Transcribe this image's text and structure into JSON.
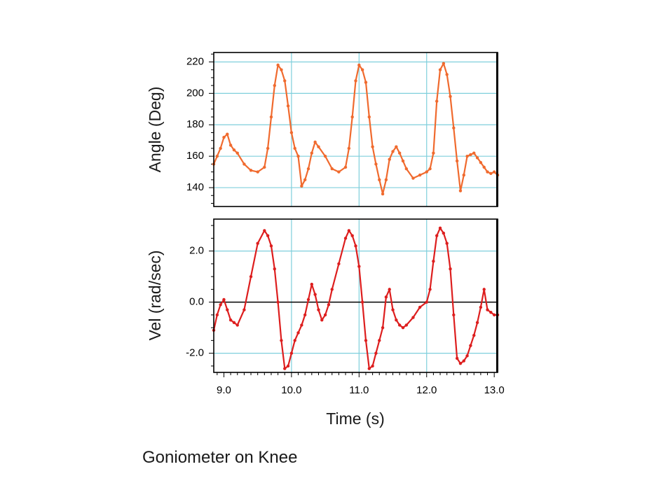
{
  "caption": "Goniometer on Knee",
  "colors": {
    "angle_series": "#f06a2e",
    "velocity_series": "#dd1e1e",
    "gridline": "#7fcfdc",
    "frame": "#000000",
    "zero_line": "#000000"
  },
  "chart_data": [
    {
      "type": "line",
      "ylabel": "Angle (Deg)",
      "xlabel": "",
      "xlim": [
        8.85,
        13.05
      ],
      "ylim": [
        128,
        226
      ],
      "yticks": [
        140,
        160,
        180,
        200,
        220
      ],
      "yticklabels": [
        "140",
        "160",
        "180",
        "200",
        "220"
      ],
      "xticks": [
        10,
        11,
        12
      ],
      "grid": true,
      "series": [
        {
          "color": "#f06a2e",
          "x": [
            8.85,
            8.9,
            8.95,
            9.0,
            9.05,
            9.1,
            9.15,
            9.2,
            9.3,
            9.4,
            9.5,
            9.6,
            9.65,
            9.7,
            9.75,
            9.8,
            9.85,
            9.9,
            9.95,
            10.0,
            10.05,
            10.1,
            10.15,
            10.2,
            10.25,
            10.3,
            10.35,
            10.4,
            10.5,
            10.6,
            10.7,
            10.8,
            10.85,
            10.9,
            10.95,
            11.0,
            11.05,
            11.1,
            11.15,
            11.2,
            11.25,
            11.3,
            11.35,
            11.4,
            11.45,
            11.5,
            11.55,
            11.6,
            11.65,
            11.7,
            11.8,
            11.9,
            12.0,
            12.05,
            12.1,
            12.15,
            12.2,
            12.25,
            12.3,
            12.35,
            12.4,
            12.45,
            12.5,
            12.55,
            12.6,
            12.65,
            12.7,
            12.75,
            12.8,
            12.85,
            12.9,
            12.95,
            13.0,
            13.05
          ],
          "values": [
            155,
            160,
            165,
            172,
            174,
            167,
            164,
            162,
            155,
            151,
            150,
            153,
            165,
            185,
            205,
            218,
            215,
            208,
            192,
            175,
            165,
            160,
            141,
            145,
            152,
            162,
            169,
            166,
            160,
            152,
            150,
            153,
            165,
            185,
            208,
            218,
            215,
            207,
            185,
            166,
            155,
            145,
            136,
            145,
            158,
            163,
            166,
            162,
            157,
            152,
            146,
            148,
            150,
            152,
            162,
            195,
            215,
            219,
            212,
            198,
            178,
            157,
            138,
            148,
            160,
            161,
            162,
            159,
            156,
            153,
            150,
            149,
            150,
            148
          ]
        }
      ]
    },
    {
      "type": "line",
      "ylabel": "Vel (rad/sec)",
      "xlabel": "Time (s)",
      "xlim": [
        8.85,
        13.05
      ],
      "ylim": [
        -2.75,
        3.25
      ],
      "yticks": [
        -2.0,
        0.0,
        2.0
      ],
      "yticklabels": [
        "-2.0",
        "0.0",
        "2.0"
      ],
      "xticks": [
        9.0,
        10.0,
        11.0,
        12.0,
        13.0
      ],
      "xticklabels": [
        "9.0",
        "10.0",
        "11.0",
        "12.0",
        "13.0"
      ],
      "grid": true,
      "series": [
        {
          "color": "#dd1e1e",
          "x": [
            8.85,
            8.9,
            8.95,
            9.0,
            9.05,
            9.1,
            9.15,
            9.2,
            9.3,
            9.4,
            9.5,
            9.6,
            9.65,
            9.7,
            9.75,
            9.8,
            9.85,
            9.9,
            9.95,
            10.0,
            10.05,
            10.1,
            10.15,
            10.2,
            10.25,
            10.3,
            10.35,
            10.4,
            10.45,
            10.5,
            10.55,
            10.6,
            10.7,
            10.8,
            10.85,
            10.9,
            10.95,
            11.0,
            11.05,
            11.1,
            11.15,
            11.2,
            11.25,
            11.3,
            11.35,
            11.4,
            11.45,
            11.5,
            11.55,
            11.6,
            11.65,
            11.7,
            11.8,
            11.9,
            12.0,
            12.05,
            12.1,
            12.15,
            12.2,
            12.25,
            12.3,
            12.35,
            12.4,
            12.45,
            12.5,
            12.55,
            12.6,
            12.65,
            12.7,
            12.75,
            12.8,
            12.85,
            12.9,
            12.95,
            13.0,
            13.05
          ],
          "values": [
            -1.1,
            -0.5,
            -0.1,
            0.1,
            -0.3,
            -0.7,
            -0.8,
            -0.9,
            -0.3,
            1.0,
            2.3,
            2.8,
            2.6,
            2.2,
            1.3,
            0.0,
            -1.5,
            -2.6,
            -2.5,
            -2.0,
            -1.5,
            -1.2,
            -0.9,
            -0.5,
            0.1,
            0.7,
            0.3,
            -0.3,
            -0.7,
            -0.5,
            -0.1,
            0.5,
            1.5,
            2.5,
            2.8,
            2.6,
            2.2,
            1.4,
            0.0,
            -1.5,
            -2.6,
            -2.5,
            -2.0,
            -1.5,
            -1.0,
            0.2,
            0.5,
            -0.3,
            -0.7,
            -0.9,
            -1.0,
            -0.9,
            -0.6,
            -0.2,
            0.0,
            0.5,
            1.6,
            2.6,
            2.9,
            2.7,
            2.3,
            1.3,
            -0.5,
            -2.2,
            -2.4,
            -2.3,
            -2.1,
            -1.7,
            -1.3,
            -0.8,
            -0.2,
            0.5,
            -0.3,
            -0.4,
            -0.5,
            -0.5
          ]
        }
      ]
    }
  ]
}
